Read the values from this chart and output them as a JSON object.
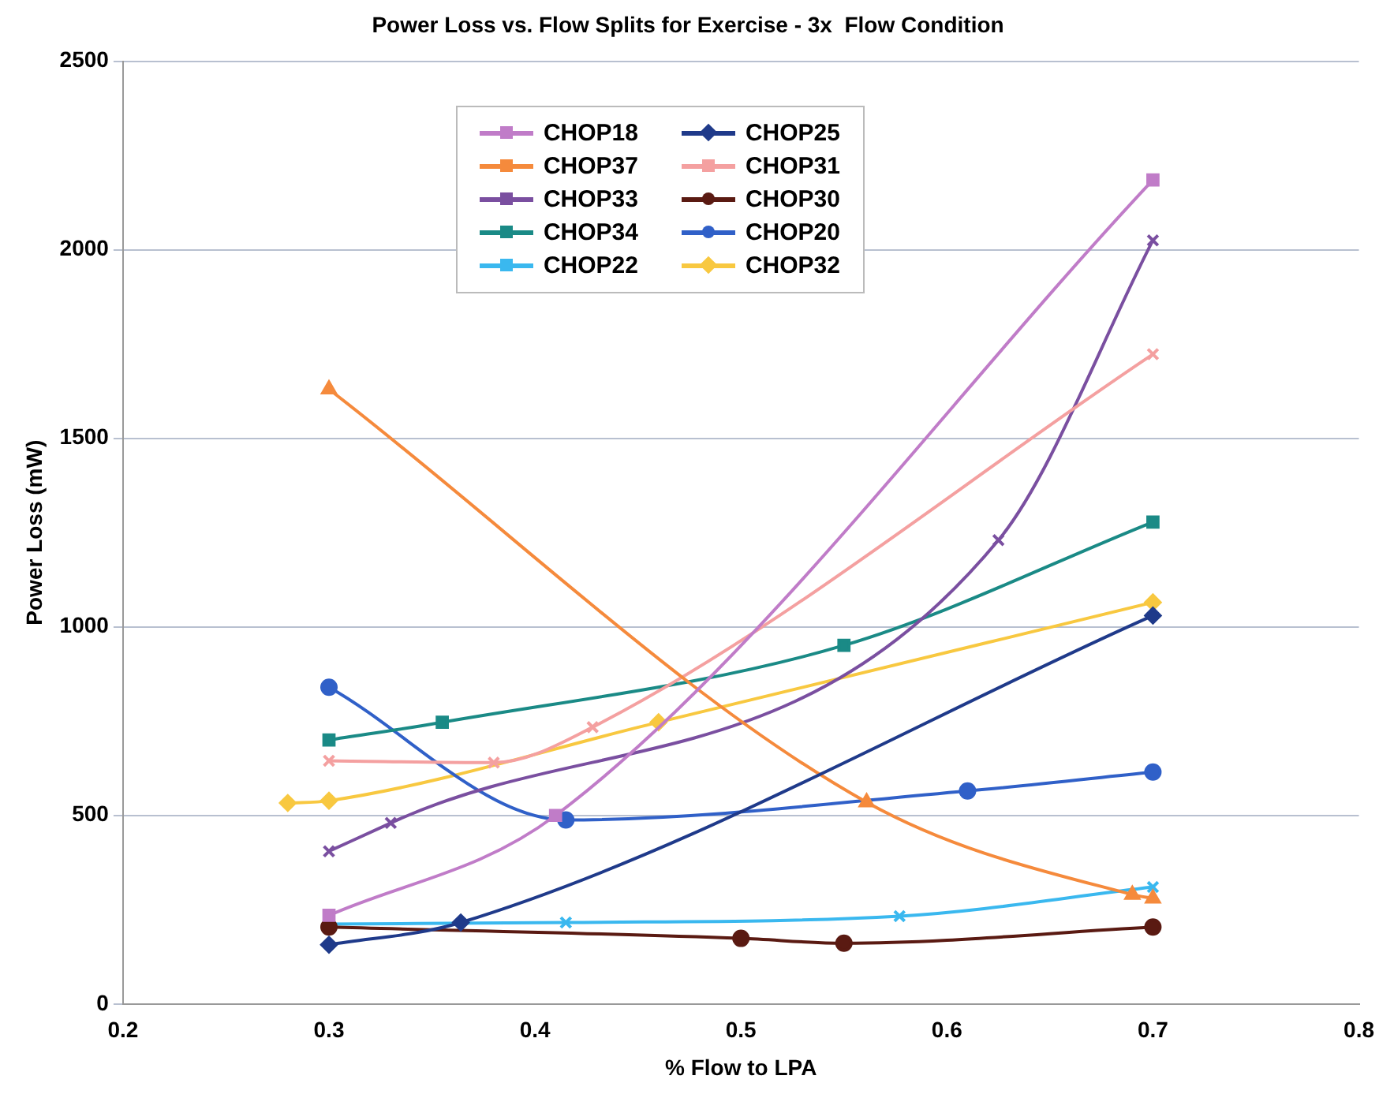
{
  "chart_data": {
    "type": "line",
    "title": "Power Loss vs. Flow Splits for Exercise - 3x  Flow Condition",
    "xlabel": "% Flow to LPA",
    "ylabel": "Power Loss (mW)",
    "xlim": [
      0.2,
      0.8
    ],
    "xticks": [
      0.2,
      0.3,
      0.4,
      0.5,
      0.6,
      0.7,
      0.8
    ],
    "ylim": [
      0,
      2500
    ],
    "yticks": [
      0,
      500,
      1000,
      1500,
      2000,
      2500
    ],
    "grid": "y",
    "legend": "top",
    "series": [
      {
        "name": "CHOP18",
        "color": "#c07cc8",
        "marker": "square",
        "x": [
          0.3,
          0.41,
          0.7
        ],
        "values": [
          235,
          500,
          2185
        ]
      },
      {
        "name": "CHOP25",
        "color": "#1f3a8a",
        "marker": "diamond",
        "x": [
          0.3,
          0.364,
          0.7
        ],
        "values": [
          157,
          216,
          1030
        ]
      },
      {
        "name": "CHOP37",
        "color": "#f58a3c",
        "marker": "triangle",
        "x": [
          0.3,
          0.561,
          0.69,
          0.7
        ],
        "values": [
          1630,
          535,
          290,
          280
        ]
      },
      {
        "name": "CHOP31",
        "color": "#f4a0a0",
        "marker": "cross",
        "x": [
          0.3,
          0.38,
          0.428,
          0.7
        ],
        "values": [
          645,
          640,
          734,
          1723
        ]
      },
      {
        "name": "CHOP33",
        "color": "#7a4fa0",
        "marker": "cross",
        "x": [
          0.3,
          0.33,
          0.625,
          0.7
        ],
        "values": [
          405,
          480,
          1230,
          2025
        ]
      },
      {
        "name": "CHOP30",
        "color": "#5a1a12",
        "marker": "circle",
        "x": [
          0.3,
          0.5,
          0.55,
          0.7
        ],
        "values": [
          204,
          174,
          161,
          204
        ]
      },
      {
        "name": "CHOP34",
        "color": "#1a8a86",
        "marker": "square",
        "x": [
          0.3,
          0.355,
          0.55,
          0.7
        ],
        "values": [
          700,
          747,
          951,
          1278
        ]
      },
      {
        "name": "CHOP20",
        "color": "#3060c8",
        "marker": "circle",
        "x": [
          0.3,
          0.415,
          0.61,
          0.7
        ],
        "values": [
          840,
          488,
          565,
          615
        ]
      },
      {
        "name": "CHOP22",
        "color": "#3ab8ef",
        "marker": "cross",
        "x": [
          0.3,
          0.415,
          0.577,
          0.7
        ],
        "values": [
          212,
          216,
          233,
          310
        ]
      },
      {
        "name": "CHOP32",
        "color": "#f8c840",
        "marker": "diamond",
        "x": [
          0.28,
          0.3,
          0.46,
          0.7
        ],
        "values": [
          533,
          539,
          747,
          1065
        ]
      }
    ]
  }
}
